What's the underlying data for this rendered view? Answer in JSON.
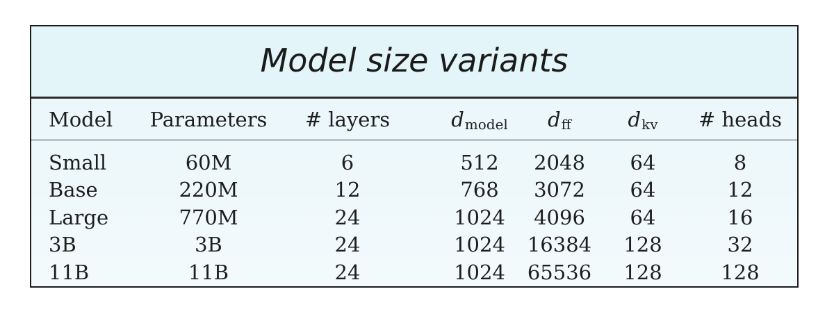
{
  "title": "Model size variants",
  "table": {
    "headers": [
      {
        "text": "Model"
      },
      {
        "text": "Parameters"
      },
      {
        "text": "# layers"
      },
      {
        "base": "d",
        "sub": "model"
      },
      {
        "base": "d",
        "sub": "ff"
      },
      {
        "base": "d",
        "sub": "kv"
      },
      {
        "text": "# heads"
      }
    ],
    "rows": [
      [
        "Small",
        "60M",
        "6",
        "512",
        "2048",
        "64",
        "8"
      ],
      [
        "Base",
        "220M",
        "12",
        "768",
        "3072",
        "64",
        "12"
      ],
      [
        "Large",
        "770M",
        "24",
        "1024",
        "4096",
        "64",
        "16"
      ],
      [
        "3B",
        "3B",
        "24",
        "1024",
        "16384",
        "128",
        "32"
      ],
      [
        "11B",
        "11B",
        "24",
        "1024",
        "65536",
        "128",
        "128"
      ]
    ]
  }
}
